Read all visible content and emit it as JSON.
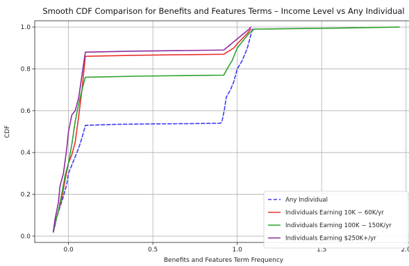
{
  "chart_data": {
    "type": "line",
    "title": "Smooth CDF Comparison for Benefits and Features Terms – Income Level vs Any Individual",
    "xlabel": "Benefits and Features Term Frequency",
    "ylabel": "CDF",
    "xlim": [
      -0.2,
      2.03
    ],
    "ylim": [
      -0.03,
      1.03
    ],
    "xticks": [
      0.0,
      0.5,
      1.0,
      1.5,
      2.0
    ],
    "xtick_labels": [
      "0.0",
      "0.5",
      "1.0",
      "1.5",
      "2.0"
    ],
    "yticks": [
      0.0,
      0.2,
      0.4,
      0.6,
      0.8,
      1.0
    ],
    "ytick_labels": [
      "0.0",
      "0.2",
      "0.4",
      "0.6",
      "0.8",
      "1.0"
    ],
    "grid": true,
    "legend_position": "lower-right",
    "series": [
      {
        "name": "Any Individual",
        "color": "#3b3bf5",
        "dash": "dashed",
        "points": [
          [
            -0.09,
            0.02
          ],
          [
            -0.08,
            0.05
          ],
          [
            -0.07,
            0.09
          ],
          [
            -0.05,
            0.14
          ],
          [
            -0.03,
            0.19
          ],
          [
            -0.01,
            0.25
          ],
          [
            0.0,
            0.3
          ],
          [
            0.02,
            0.34
          ],
          [
            0.04,
            0.38
          ],
          [
            0.06,
            0.42
          ],
          [
            0.08,
            0.47
          ],
          [
            0.1,
            0.53
          ],
          [
            0.3,
            0.535
          ],
          [
            0.5,
            0.537
          ],
          [
            0.7,
            0.538
          ],
          [
            0.9,
            0.54
          ],
          [
            0.91,
            0.55
          ],
          [
            0.925,
            0.61
          ],
          [
            0.935,
            0.665
          ],
          [
            0.96,
            0.7
          ],
          [
            0.98,
            0.74
          ],
          [
            1.0,
            0.8
          ],
          [
            1.03,
            0.84
          ],
          [
            1.06,
            0.9
          ],
          [
            1.08,
            0.96
          ],
          [
            1.09,
            0.99
          ]
        ]
      },
      {
        "name": "Individuals Earning $10K-$60K/yr",
        "legend_label": "Individuals Earning 10K − 60K/yr",
        "color": "#e8302e",
        "dash": "solid",
        "points": [
          [
            -0.09,
            0.02
          ],
          [
            -0.08,
            0.06
          ],
          [
            -0.06,
            0.12
          ],
          [
            -0.04,
            0.18
          ],
          [
            -0.02,
            0.27
          ],
          [
            0.0,
            0.35
          ],
          [
            0.02,
            0.39
          ],
          [
            0.04,
            0.45
          ],
          [
            0.06,
            0.57
          ],
          [
            0.08,
            0.7
          ],
          [
            0.1,
            0.86
          ],
          [
            0.4,
            0.865
          ],
          [
            0.7,
            0.868
          ],
          [
            0.92,
            0.87
          ],
          [
            0.95,
            0.885
          ],
          [
            0.98,
            0.9
          ],
          [
            1.0,
            0.92
          ],
          [
            1.03,
            0.945
          ],
          [
            1.06,
            0.97
          ],
          [
            1.08,
            0.99
          ]
        ]
      },
      {
        "name": "Individuals Earning $100K-$150K/yr",
        "legend_label": "Individuals Earning 100K − 150K/yr",
        "color": "#2ca02c",
        "dash": "solid",
        "points": [
          [
            -0.09,
            0.02
          ],
          [
            -0.08,
            0.06
          ],
          [
            -0.06,
            0.12
          ],
          [
            -0.04,
            0.2
          ],
          [
            -0.02,
            0.29
          ],
          [
            0.0,
            0.35
          ],
          [
            0.02,
            0.44
          ],
          [
            0.04,
            0.55
          ],
          [
            0.06,
            0.63
          ],
          [
            0.08,
            0.7
          ],
          [
            0.1,
            0.76
          ],
          [
            0.4,
            0.765
          ],
          [
            0.7,
            0.768
          ],
          [
            0.92,
            0.77
          ],
          [
            0.94,
            0.8
          ],
          [
            0.97,
            0.84
          ],
          [
            1.0,
            0.9
          ],
          [
            1.04,
            0.94
          ],
          [
            1.07,
            0.97
          ],
          [
            1.1,
            0.99
          ],
          [
            1.3,
            0.992
          ],
          [
            1.6,
            0.995
          ],
          [
            1.96,
            1.0
          ]
        ]
      },
      {
        "name": "Individuals Earning $250K+/yr",
        "legend_label": "Individuals Earning $250K+/yr",
        "color": "#8b2a9c",
        "dash": "solid",
        "points": [
          [
            -0.09,
            0.02
          ],
          [
            -0.08,
            0.08
          ],
          [
            -0.06,
            0.16
          ],
          [
            -0.05,
            0.24
          ],
          [
            -0.03,
            0.3
          ],
          [
            -0.01,
            0.42
          ],
          [
            0.0,
            0.5
          ],
          [
            0.02,
            0.58
          ],
          [
            0.04,
            0.6
          ],
          [
            0.06,
            0.66
          ],
          [
            0.08,
            0.77
          ],
          [
            0.1,
            0.88
          ],
          [
            0.4,
            0.885
          ],
          [
            0.7,
            0.888
          ],
          [
            0.92,
            0.89
          ],
          [
            0.95,
            0.91
          ],
          [
            0.98,
            0.93
          ],
          [
            1.01,
            0.95
          ],
          [
            1.04,
            0.97
          ],
          [
            1.07,
            0.99
          ],
          [
            1.08,
            1.0
          ]
        ]
      }
    ]
  }
}
